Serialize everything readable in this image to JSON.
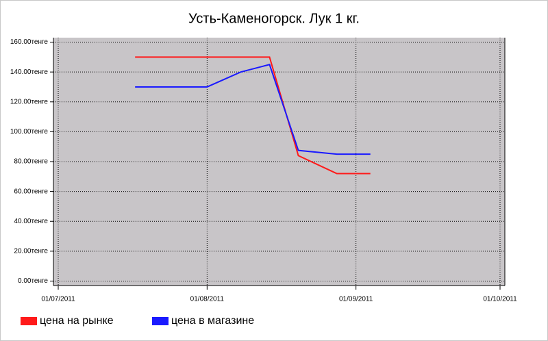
{
  "chart_data": {
    "type": "line",
    "title": "Усть-Каменогорск. Лук 1 кг.",
    "x": [
      "2011-07-17",
      "2011-08-01",
      "2011-08-08",
      "2011-08-14",
      "2011-08-20",
      "2011-08-28",
      "2011-09-04"
    ],
    "series": [
      {
        "name": "цена на рынке",
        "color": "#ff1a1a",
        "values": [
          150,
          150,
          150,
          150,
          84,
          72,
          72
        ]
      },
      {
        "name": "цена в магазине",
        "color": "#1a1aff",
        "values": [
          130,
          130,
          140,
          145,
          87.5,
          85,
          85
        ]
      }
    ],
    "xlim": [
      "2011-06-30",
      "2011-10-02"
    ],
    "xticks": [
      {
        "value": "2011-07-01",
        "label": "01/07/2011"
      },
      {
        "value": "2011-08-01",
        "label": "01/08/2011"
      },
      {
        "value": "2011-09-01",
        "label": "01/09/2011"
      },
      {
        "value": "2011-10-01",
        "label": "01/10/2011"
      }
    ],
    "ylim": [
      -3,
      163
    ],
    "yticks": [
      {
        "value": 0,
        "label": "0.00тенге"
      },
      {
        "value": 20,
        "label": "20.00тенге"
      },
      {
        "value": 40,
        "label": "40.00тенге"
      },
      {
        "value": 60,
        "label": "60.00тенге"
      },
      {
        "value": 80,
        "label": "80.00тенге"
      },
      {
        "value": 100,
        "label": "100.00тенге"
      },
      {
        "value": 120,
        "label": "120.00тенге"
      },
      {
        "value": 140,
        "label": "140.00тенге"
      },
      {
        "value": 160,
        "label": "160.00тенге"
      }
    ],
    "grid": true,
    "legend": "bottom"
  }
}
